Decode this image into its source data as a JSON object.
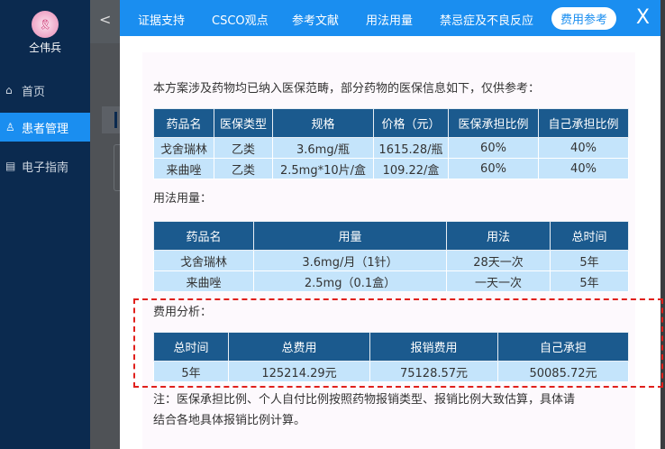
{
  "sidebar": {
    "user_name": "仝伟兵",
    "items": [
      {
        "label": "首页",
        "icon": "home-icon"
      },
      {
        "label": "患者管理",
        "icon": "user-icon",
        "active": true
      },
      {
        "label": "电子指南",
        "icon": "book-icon"
      }
    ]
  },
  "header": {
    "tabs": [
      "证据支持",
      "CSCO观点",
      "参考文献",
      "用法用量",
      "禁忌症及不良反应",
      "费用参考"
    ],
    "active_tab": "费用参考",
    "close": "X"
  },
  "content": {
    "intro": "本方案涉及药物均已纳入医保范畴，部分药物的医保信息如下，仅供参考：",
    "insurance_table": {
      "headers": [
        "药品名",
        "医保类型",
        "规格",
        "价格（元）",
        "医保承担比例",
        "自己承担比例"
      ],
      "rows": [
        [
          "戈舍瑞林",
          "乙类",
          "3.6mg/瓶",
          "1615.28/瓶",
          "60%",
          "40%"
        ],
        [
          "来曲唑",
          "乙类",
          "2.5mg*10片/盒",
          "109.22/盒",
          "60%",
          "40%"
        ]
      ]
    },
    "usage_title": "用法用量：",
    "usage_table": {
      "headers": [
        "药品名",
        "用量",
        "用法",
        "总时间"
      ],
      "rows": [
        [
          "戈舍瑞林",
          "3.6mg/月（1针）",
          "28天一次",
          "5年"
        ],
        [
          "来曲唑",
          "2.5mg（0.1盒）",
          "一天一次",
          "5年"
        ]
      ]
    },
    "cost_title": "费用分析：",
    "cost_table": {
      "headers": [
        "总时间",
        "总费用",
        "报销费用",
        "自己承担"
      ],
      "rows": [
        [
          "5年",
          "125214.29元",
          "75128.57元",
          "50085.72元"
        ]
      ]
    },
    "note_line1": "注：医保承担比例、个人自付比例按照药物报销类型、报销比例大致估算，具体请",
    "note_line2": "结合各地具体报销比例计算。"
  },
  "colors": {
    "accent": "#1a8ef0",
    "sidebar": "#0b2a4f",
    "table_header": "#1b5a8e",
    "table_cell": "#c4e4fb",
    "highlight_border": "#e0201c"
  }
}
